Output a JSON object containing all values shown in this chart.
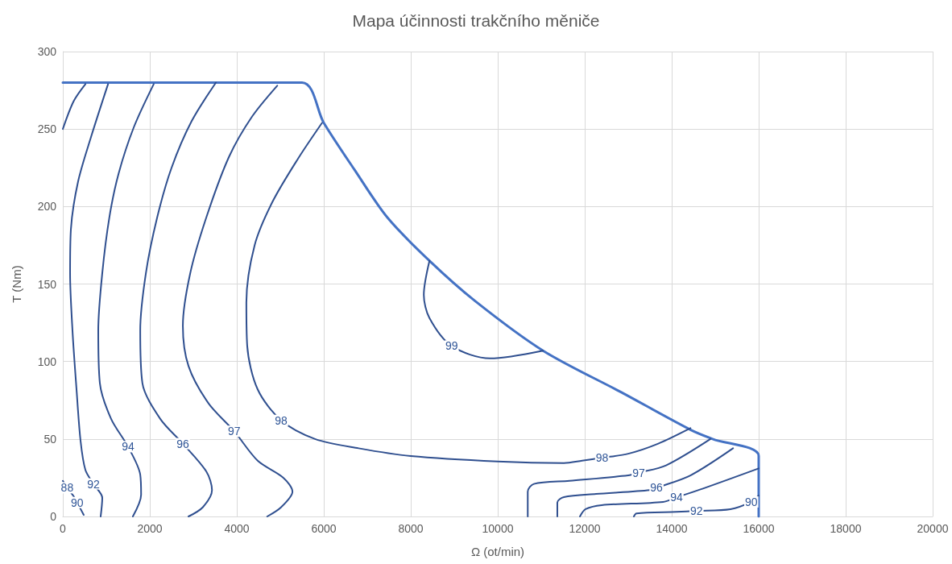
{
  "chart_data": {
    "type": "line",
    "title": "Mapa účinnosti trakčního měniče",
    "xlabel": "Ω (ot/min)",
    "ylabel": "T (Nm)",
    "xlim": [
      0,
      20000
    ],
    "xticks": [
      0,
      2000,
      4000,
      6000,
      8000,
      10000,
      12000,
      14000,
      16000,
      18000,
      20000
    ],
    "ylim": [
      0,
      300
    ],
    "yticks": [
      0,
      50,
      100,
      150,
      200,
      250,
      300
    ],
    "grid": true,
    "marker": "none",
    "line_style": "solid",
    "series": [
      {
        "color": "#4472c4",
        "x": [
          0,
          5500,
          6000,
          6700,
          7460,
          8430,
          9480,
          11040,
          12850,
          14430,
          14940,
          16000,
          16000
        ],
        "values": [
          280,
          280,
          254,
          224,
          193,
          165,
          139,
          107,
          80,
          56,
          50,
          39,
          0
        ]
      },
      {
        "color": "#2f4f8f",
        "x": [
          0,
          100,
          250,
          330,
          480
        ],
        "values": [
          23,
          18.5,
          13,
          9,
          1
        ]
      },
      {
        "color": "#2f4f8f",
        "x": [
          0,
          250,
          520
        ],
        "values": [
          250,
          268,
          279
        ]
      },
      {
        "color": "#2f4f8f",
        "x": [
          1040,
          650,
          350,
          185,
          167,
          222,
          315,
          407,
          519,
          704,
          907,
          870
        ],
        "values": [
          279,
          245,
          216,
          185,
          157,
          120,
          82,
          49,
          30,
          21,
          12,
          0
        ]
      },
      {
        "color": "#2f4f8f",
        "x": [
          2090,
          1630,
          1280,
          1070,
          907,
          815,
          852,
          1110,
          1500,
          1780,
          1800,
          1610
        ],
        "values": [
          279,
          251,
          221,
          193,
          157,
          120,
          86,
          63,
          45,
          27,
          14,
          0
        ]
      },
      {
        "color": "#2f4f8f",
        "x": [
          3520,
          2960,
          2500,
          2170,
          1910,
          1780,
          1830,
          2240,
          2760,
          3300,
          3430,
          3220,
          2890
        ],
        "values": [
          280,
          255,
          225,
          193,
          157,
          120,
          86,
          63,
          47,
          29,
          17,
          6,
          0
        ]
      },
      {
        "color": "#2f4f8f",
        "x": [
          4930,
          4350,
          3820,
          3300,
          2930,
          2760,
          2890,
          3350,
          3940,
          4480,
          5070,
          5280,
          5020,
          4700
        ],
        "values": [
          278,
          258,
          232,
          193,
          157,
          123,
          97,
          73,
          55,
          36,
          25,
          16,
          6,
          0
        ]
      },
      {
        "color": "#2f4f8f",
        "x": [
          5960,
          5410,
          4820,
          4410,
          4220,
          4240,
          4480,
          5020,
          5800,
          6800,
          8000,
          10000,
          11520,
          11940,
          12400,
          13000,
          13690,
          14430
        ],
        "values": [
          254,
          231,
          203,
          175,
          138,
          110,
          82,
          62,
          50,
          44,
          39,
          35.5,
          34.5,
          36,
          37.9,
          40.5,
          47,
          57
        ]
      },
      {
        "color": "#2f4f8f",
        "x": [
          8430,
          8300,
          8430,
          8940,
          9820,
          11040
        ],
        "values": [
          165,
          143,
          128,
          110,
          102,
          107
        ]
      },
      {
        "color": "#2f4f8f",
        "x": [
          10690,
          10690,
          10830,
          11650,
          13000,
          13240,
          13870,
          14890
        ],
        "values": [
          0,
          16,
          21,
          23,
          26.5,
          28.2,
          33,
          50
        ]
      },
      {
        "color": "#2f4f8f",
        "x": [
          11370,
          11370,
          11520,
          12260,
          13500,
          13650,
          14430,
          15410
        ],
        "values": [
          0,
          9,
          12.5,
          14.5,
          17,
          18.5,
          26.5,
          44
        ]
      },
      {
        "color": "#2f4f8f",
        "x": [
          11890,
          12020,
          12390,
          13800,
          14110,
          14720,
          16000
        ],
        "values": [
          0,
          4.7,
          7.3,
          9.4,
          12.3,
          18,
          31
        ]
      },
      {
        "color": "#2f4f8f",
        "x": [
          13130,
          13190,
          14110,
          14570,
          15350,
          15830,
          16000
        ],
        "values": [
          0,
          2,
          3,
          3.6,
          4.7,
          9.4,
          13.5
        ]
      }
    ],
    "annotations": [
      {
        "text": "88",
        "x": 100,
        "y": 18.5
      },
      {
        "text": "90",
        "x": 330,
        "y": 9
      },
      {
        "text": "92",
        "x": 704,
        "y": 21
      },
      {
        "text": "94",
        "x": 1500,
        "y": 45
      },
      {
        "text": "96",
        "x": 2760,
        "y": 47
      },
      {
        "text": "97",
        "x": 3940,
        "y": 55
      },
      {
        "text": "98",
        "x": 5020,
        "y": 62
      },
      {
        "text": "99",
        "x": 8940,
        "y": 110
      },
      {
        "text": "98",
        "x": 12400,
        "y": 37.9
      },
      {
        "text": "97",
        "x": 13240,
        "y": 28.2
      },
      {
        "text": "96",
        "x": 13650,
        "y": 18.5
      },
      {
        "text": "94",
        "x": 14110,
        "y": 12.3
      },
      {
        "text": "92",
        "x": 14570,
        "y": 3.6
      },
      {
        "text": "90",
        "x": 15830,
        "y": 9.4
      }
    ]
  }
}
